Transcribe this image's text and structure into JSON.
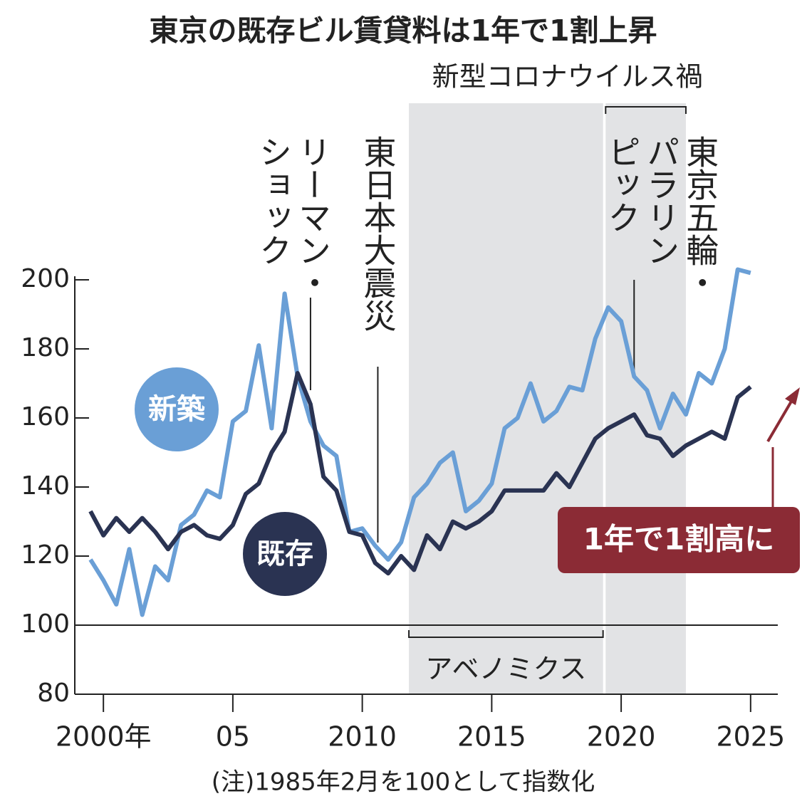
{
  "chart_data": {
    "type": "line",
    "title": "東京の既存ビル賃貸料は1年で1割上昇",
    "note": "(注)1985年2月を100として指数化",
    "callout": "1年で1割高に",
    "x": [
      1999.5,
      2000,
      2000.5,
      2001,
      2001.5,
      2002,
      2002.5,
      2003,
      2003.5,
      2004,
      2004.5,
      2005,
      2005.5,
      2006,
      2006.5,
      2007,
      2007.5,
      2008,
      2008.5,
      2009,
      2009.5,
      2010,
      2010.5,
      2011,
      2011.5,
      2012,
      2012.5,
      2013,
      2013.5,
      2014,
      2014.5,
      2015,
      2015.5,
      2016,
      2016.5,
      2017,
      2017.5,
      2018,
      2018.5,
      2019,
      2019.5,
      2020,
      2020.5,
      2021,
      2021.5,
      2022,
      2022.5,
      2023,
      2023.5,
      2024,
      2024.5,
      2025
    ],
    "series": [
      {
        "name": "新築",
        "color": "#6a9fd6",
        "values": [
          119,
          113,
          106,
          122,
          103,
          117,
          113,
          129,
          132,
          139,
          137,
          159,
          162,
          181,
          157,
          196,
          172,
          159,
          152,
          149,
          127,
          128,
          123,
          119,
          124,
          137,
          141,
          147,
          150,
          133,
          136,
          141,
          157,
          160,
          170,
          159,
          162,
          169,
          168,
          183,
          192,
          188,
          172,
          168,
          157,
          167,
          161,
          173,
          170,
          180,
          203,
          202
        ]
      },
      {
        "name": "既存",
        "color": "#2a3352",
        "values": [
          133,
          126,
          131,
          127,
          131,
          127,
          122,
          127,
          129,
          126,
          125,
          129,
          138,
          141,
          150,
          156,
          173,
          164,
          143,
          139,
          127,
          126,
          118,
          115,
          120,
          116,
          126,
          122,
          130,
          128,
          130,
          133,
          139,
          139,
          139,
          139,
          144,
          140,
          147,
          154,
          157,
          159,
          161,
          155,
          154,
          149,
          152,
          154,
          156,
          154,
          166,
          169
        ]
      }
    ],
    "xlim": [
      1999.5,
      2025.5
    ],
    "xticks": [
      {
        "value": 2000,
        "label": "2000年"
      },
      {
        "value": 2005,
        "label": "05"
      },
      2010,
      2015,
      2020,
      2025
    ],
    "ylim": [
      80,
      200
    ],
    "yticks": [
      80,
      100,
      120,
      140,
      160,
      180,
      200
    ],
    "baseline": 100,
    "periods": [
      {
        "label": "アベノミクス",
        "x": [
          2011.8,
          2019.3
        ],
        "shade": true
      },
      {
        "label": "新型コロナウイルス禍",
        "x": [
          2019.4,
          2022.5
        ],
        "shade": true
      }
    ],
    "events": [
      {
        "lines": [
          "リーマン・",
          "ショック"
        ],
        "x": 2008
      },
      {
        "lines": [
          "東日本大震災"
        ],
        "x": 2010.6
      },
      {
        "lines": [
          "東京五輪・",
          "パラリン",
          "ピック"
        ],
        "x": 2020.5
      }
    ]
  }
}
